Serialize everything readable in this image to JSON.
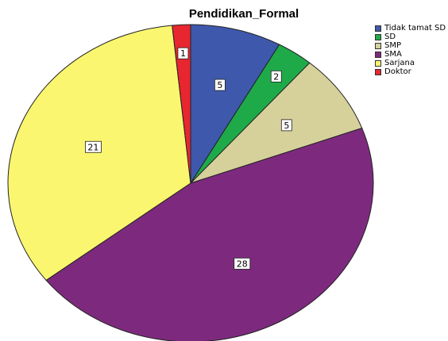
{
  "chart_data": {
    "type": "pie",
    "title": "Pendidikan_Formal",
    "categories": [
      "Tidak tamat SD",
      "SD",
      "SMP",
      "SMA",
      "Sarjana",
      "Doktor"
    ],
    "values": [
      5,
      2,
      5,
      28,
      21,
      1
    ],
    "colors": [
      "#3e58ac",
      "#1faa4a",
      "#d6d19b",
      "#7d2a7e",
      "#faf66f",
      "#e7262f"
    ],
    "legend_position": "top-right",
    "data_labels": true
  }
}
